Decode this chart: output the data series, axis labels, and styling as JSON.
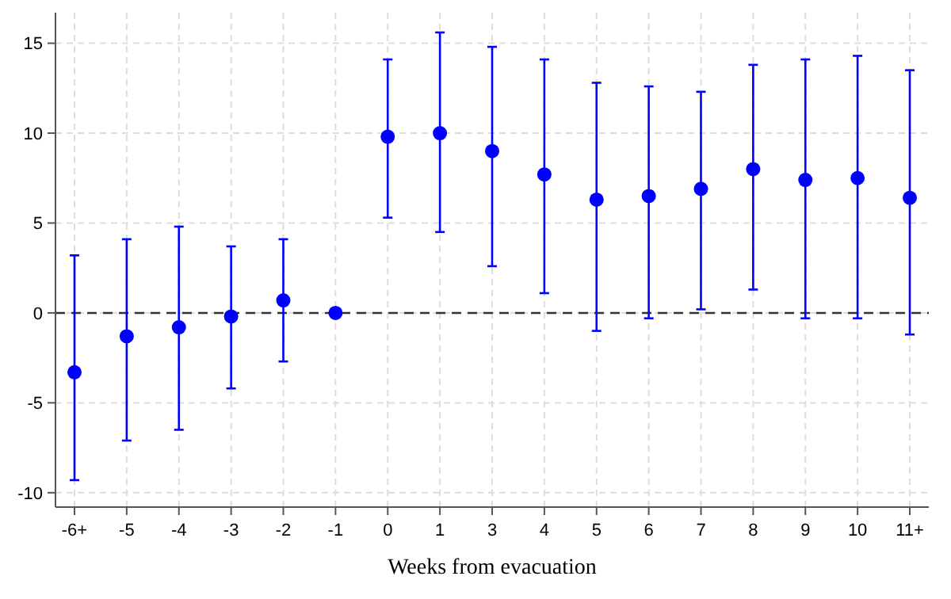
{
  "chart_data": {
    "type": "scatter",
    "xlabel": "Weeks from evacuation",
    "categories": [
      "-6+",
      "-5",
      "-4",
      "-3",
      "-2",
      "-1",
      "0",
      "1",
      "3",
      "4",
      "5",
      "6",
      "7",
      "8",
      "9",
      "10",
      "11+"
    ],
    "series": [
      {
        "color": "#0000ff",
        "values": [
          -3.3,
          -1.3,
          -0.8,
          -0.2,
          0.7,
          0,
          9.8,
          10.0,
          9.0,
          7.7,
          6.3,
          6.5,
          6.9,
          8.0,
          7.4,
          7.5,
          6.4
        ],
        "errors": [
          [
            -9.3,
            3.2
          ],
          [
            -7.1,
            4.1
          ],
          [
            -6.5,
            4.8
          ],
          [
            -4.2,
            3.7
          ],
          [
            -2.7,
            4.1
          ],
          null,
          [
            5.3,
            14.1
          ],
          [
            4.5,
            15.6
          ],
          [
            2.6,
            14.8
          ],
          [
            1.1,
            14.1
          ],
          [
            -1.0,
            12.8
          ],
          [
            -0.3,
            12.6
          ],
          [
            0.2,
            12.3
          ],
          [
            1.3,
            13.8
          ],
          [
            -0.3,
            14.1
          ],
          [
            -0.3,
            14.3
          ],
          [
            -1.2,
            13.5
          ]
        ]
      }
    ],
    "ylim": [
      -10.8,
      16.7
    ],
    "yticks": [
      -10,
      -5,
      0,
      5,
      10,
      15
    ],
    "grid": true,
    "marker": "circle",
    "ref_lines": [
      {
        "axis": "y",
        "value": 0,
        "color": "#333333",
        "line_style": "dashed"
      }
    ]
  }
}
